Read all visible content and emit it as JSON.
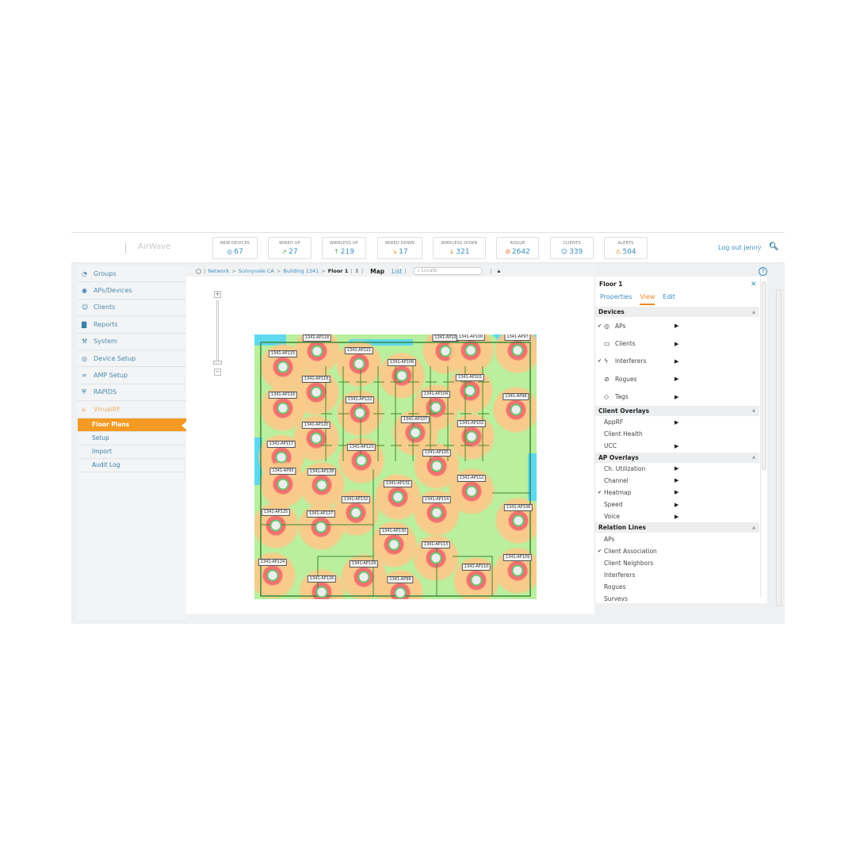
{
  "header": {
    "logo": "AirWave",
    "stats": [
      {
        "label": "NEW DEVICES",
        "value": "67",
        "icon": "ap-icon",
        "color": "#3a8fc0"
      },
      {
        "label": "WIRED UP",
        "value": "27",
        "icon": "wired-up-icon",
        "color": "#4caf50"
      },
      {
        "label": "WIRELESS UP",
        "value": "219",
        "icon": "arrow-up-icon",
        "color": "#4caf50"
      },
      {
        "label": "WIRED DOWN",
        "value": "17",
        "icon": "wired-down-icon",
        "color": "#f08a24"
      },
      {
        "label": "WIRELESS DOWN",
        "value": "321",
        "icon": "arrow-down-icon",
        "color": "#f08a24"
      },
      {
        "label": "ROGUE",
        "value": "2642",
        "icon": "rogue-icon",
        "color": "#f06a24"
      },
      {
        "label": "CLIENTS",
        "value": "339",
        "icon": "user-icon",
        "color": "#3a8fc0"
      },
      {
        "label": "ALERTS",
        "value": "504",
        "icon": "warning-icon",
        "color": "#f08a24"
      }
    ],
    "logout": "Log out jenny"
  },
  "sidebar": {
    "items": [
      {
        "label": "Groups",
        "icon": "wifi-icon"
      },
      {
        "label": "APs/Devices",
        "icon": "eye-icon"
      },
      {
        "label": "Clients",
        "icon": "clients-icon"
      },
      {
        "label": "Reports",
        "icon": "bar-chart-icon"
      },
      {
        "label": "System",
        "icon": "wrench-icon"
      },
      {
        "label": "Device Setup",
        "icon": "ap-icon"
      },
      {
        "label": "AMP Setup",
        "icon": "amp-icon"
      },
      {
        "label": "RAPIDS",
        "icon": "shield-icon"
      },
      {
        "label": "VisualRF",
        "icon": "building-icon"
      }
    ],
    "subitems": [
      "Floor Plans",
      "Setup",
      "Import",
      "Audit Log"
    ],
    "active_subitem": "Floor Plans"
  },
  "breadcrumb": {
    "items": [
      "Network",
      "Sunnyvale CA",
      "Building 1341"
    ],
    "current": "Floor 1",
    "map": "Map",
    "list": "List",
    "locate_placeholder": "Locate"
  },
  "floor_plan": {
    "aps": [
      "1341-AP118",
      "1341-AP115",
      "1341-AP121",
      "1341-AP10",
      "1341-AP100",
      "1341-AP97",
      "1341-AP106",
      "1341-AP119",
      "1341-AP101",
      "1341-AP116",
      "1341-AP104",
      "1341-AP98",
      "1341-AP122",
      "1341-AP107",
      "1341-AP120",
      "1341-AP102",
      "1341-AP117",
      "1341-AP123",
      "1341-AP105",
      "1341-AP95",
      "1341-AP128",
      "1341-AP131",
      "1341-AP112",
      "1341-AP132",
      "1341-AP114",
      "1341-AP125",
      "1341-AP127",
      "1341-AP108",
      "1341-AP130",
      "1341-AP113",
      "1341-AP124",
      "1341-AP129",
      "1341-AP109",
      "1341-AP110",
      "1341-AP126",
      "1341-AP99"
    ],
    "heatmap_colors": {
      "strong": "#f07070",
      "medium": "#fbc98a",
      "weak": "#b9ef9d",
      "none": "#5fd8f0"
    }
  },
  "panel": {
    "title": "Floor 1",
    "tabs": [
      "Properties",
      "View",
      "Edit"
    ],
    "active_tab": "View",
    "sections": [
      {
        "title": "Devices",
        "kind": "dev",
        "rows": [
          {
            "label": "APs",
            "icon": "ap-icon",
            "checked": true,
            "arrow": true
          },
          {
            "label": "Clients",
            "icon": "monitor-icon",
            "checked": false,
            "arrow": true
          },
          {
            "label": "Interferers",
            "icon": "interferer-icon",
            "checked": true,
            "arrow": true
          },
          {
            "label": "Rogues",
            "icon": "rogue-icon",
            "checked": false,
            "arrow": true
          },
          {
            "label": "Tags",
            "icon": "tag-icon",
            "checked": false,
            "arrow": true
          }
        ]
      },
      {
        "title": "Client Overlays",
        "kind": "ov",
        "rows": [
          {
            "label": "AppRF",
            "checked": false,
            "arrow": true
          },
          {
            "label": "Client Health",
            "checked": false,
            "arrow": false
          },
          {
            "label": "UCC",
            "checked": false,
            "arrow": true
          }
        ]
      },
      {
        "title": "AP Overlays",
        "kind": "ov",
        "rows": [
          {
            "label": "Ch. Utilization",
            "checked": false,
            "arrow": true
          },
          {
            "label": "Channel",
            "checked": false,
            "arrow": true
          },
          {
            "label": "Heatmap",
            "checked": true,
            "arrow": true
          },
          {
            "label": "Speed",
            "checked": false,
            "arrow": true
          },
          {
            "label": "Voice",
            "checked": false,
            "arrow": true
          }
        ]
      },
      {
        "title": "Relation Lines",
        "kind": "ov",
        "rows": [
          {
            "label": "APs",
            "checked": false,
            "arrow": false
          },
          {
            "label": "Client Association",
            "checked": true,
            "arrow": false
          },
          {
            "label": "Client Neighbors",
            "checked": false,
            "arrow": false
          },
          {
            "label": "Interferers",
            "checked": false,
            "arrow": false
          },
          {
            "label": "Rogues",
            "checked": false,
            "arrow": false
          },
          {
            "label": "Surveys",
            "checked": false,
            "arrow": false
          }
        ]
      }
    ]
  }
}
